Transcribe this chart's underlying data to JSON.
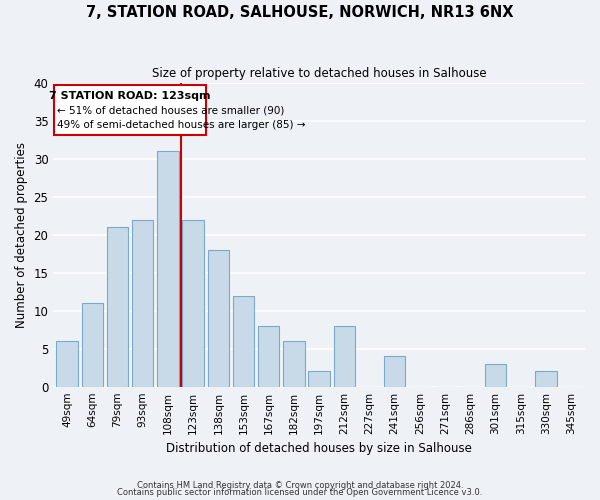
{
  "title": "7, STATION ROAD, SALHOUSE, NORWICH, NR13 6NX",
  "subtitle": "Size of property relative to detached houses in Salhouse",
  "xlabel": "Distribution of detached houses by size in Salhouse",
  "ylabel": "Number of detached properties",
  "bar_labels": [
    "49sqm",
    "64sqm",
    "79sqm",
    "93sqm",
    "108sqm",
    "123sqm",
    "138sqm",
    "153sqm",
    "167sqm",
    "182sqm",
    "197sqm",
    "212sqm",
    "227sqm",
    "241sqm",
    "256sqm",
    "271sqm",
    "286sqm",
    "301sqm",
    "315sqm",
    "330sqm",
    "345sqm"
  ],
  "bar_heights": [
    6,
    11,
    21,
    22,
    31,
    22,
    18,
    12,
    8,
    6,
    2,
    8,
    0,
    4,
    0,
    0,
    0,
    3,
    0,
    2,
    0
  ],
  "bar_color": "#c8d9e8",
  "bar_edge_color": "#7baac9",
  "vline_x_index": 4,
  "vline_color": "#cc0000",
  "annotation_title": "7 STATION ROAD: 123sqm",
  "annotation_line1": "← 51% of detached houses are smaller (90)",
  "annotation_line2": "49% of semi-detached houses are larger (85) →",
  "annotation_box_edge_color": "#cc0000",
  "ylim": [
    0,
    40
  ],
  "yticks": [
    0,
    5,
    10,
    15,
    20,
    25,
    30,
    35,
    40
  ],
  "footer1": "Contains HM Land Registry data © Crown copyright and database right 2024.",
  "footer2": "Contains public sector information licensed under the Open Government Licence v3.0.",
  "bg_color": "#eef2f7",
  "grid_color": "#ffffff"
}
